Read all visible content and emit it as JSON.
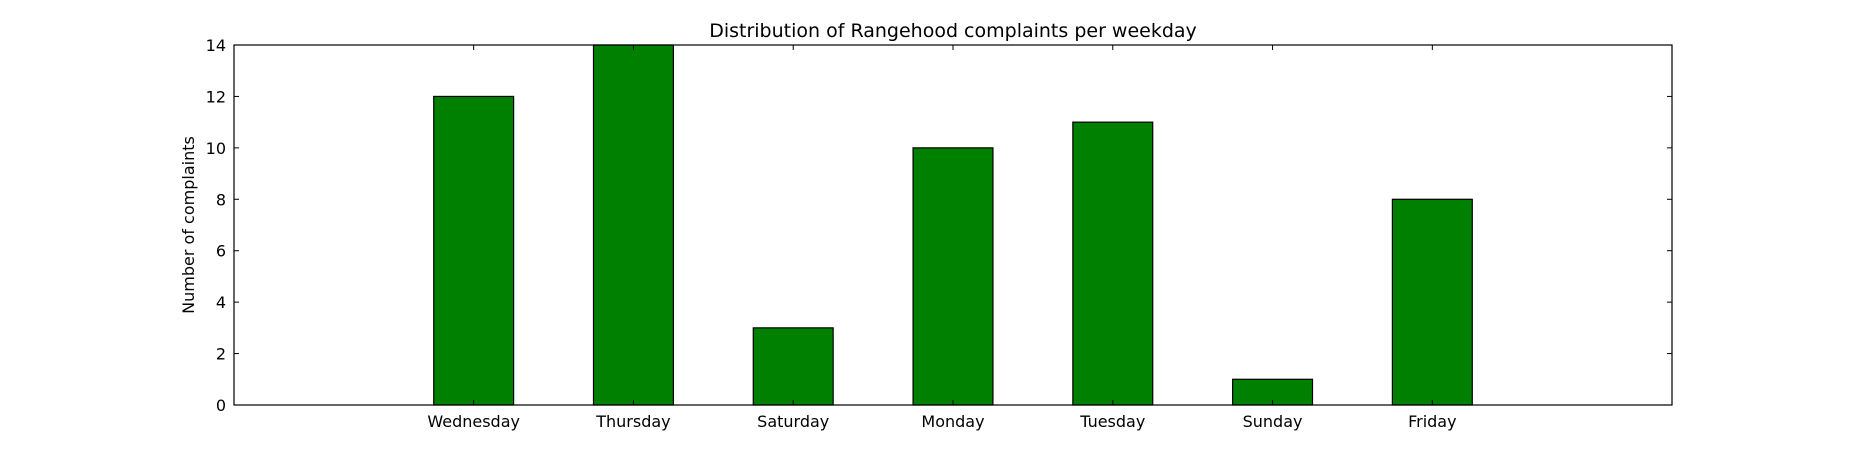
{
  "chart_data": {
    "type": "bar",
    "title": "Distribution of  Rangehood complaints per weekday",
    "xlabel": "",
    "ylabel": "Number of complaints",
    "categories": [
      "Wednesday",
      "Thursday",
      "Saturday",
      "Monday",
      "Tuesday",
      "Sunday",
      "Friday"
    ],
    "values": [
      12,
      14,
      3,
      10,
      11,
      1,
      8
    ],
    "ylim": [
      0,
      14
    ],
    "yticks": [
      0,
      2,
      4,
      6,
      8,
      10,
      12,
      14
    ],
    "xlim": [
      -1.5,
      7.5
    ],
    "bar_color": "#008000",
    "bar_edge_color": "#000000",
    "grid": false,
    "legend": false
  }
}
